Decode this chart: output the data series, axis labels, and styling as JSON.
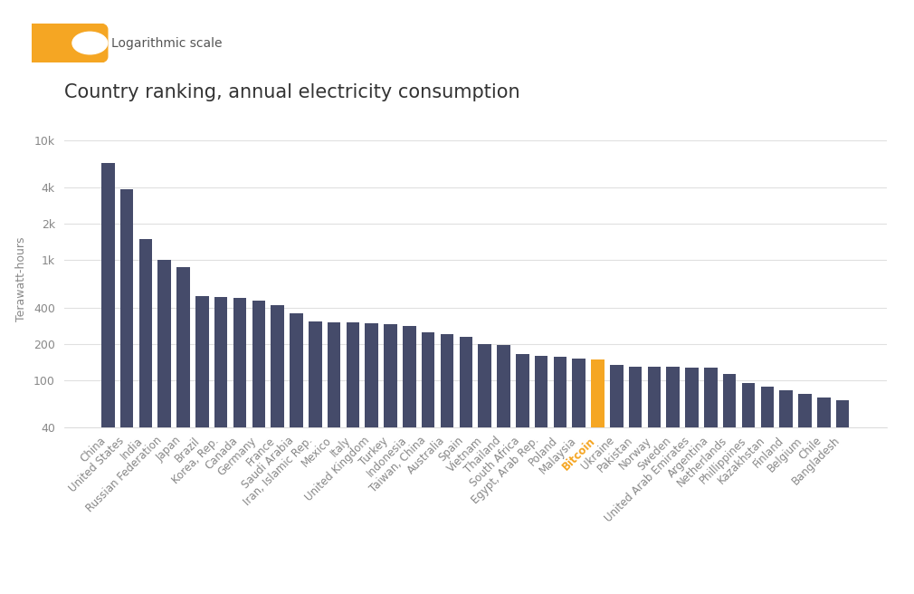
{
  "title": "Country ranking, annual electricity consumption",
  "ylabel": "Terawatt-hours",
  "categories": [
    "China",
    "United States",
    "India",
    "Russian Federation",
    "Japan",
    "Brazil",
    "Korea, Rep.",
    "Canada",
    "Germany",
    "France",
    "Saudi Arabia",
    "Iran, Islamic Rep.",
    "Mexico",
    "Italy",
    "United Kingdom",
    "Turkey",
    "Indonesia",
    "Taiwan, China",
    "Australia",
    "Spain",
    "Vietnam",
    "Thailand",
    "South Africa",
    "Egypt, Arab Rep.",
    "Poland",
    "Malaysia",
    "Bitcoin",
    "Ukraine",
    "Pakistan",
    "Norway",
    "Sweden",
    "United Arab Emirates",
    "Argentina",
    "Netherlands",
    "Phillippines",
    "Kazakhstan",
    "Finland",
    "Belgium",
    "Chile",
    "Bangladesh"
  ],
  "values": [
    6500,
    3900,
    1500,
    1000,
    870,
    500,
    490,
    480,
    455,
    420,
    360,
    310,
    305,
    300,
    295,
    290,
    280,
    250,
    240,
    230,
    200,
    195,
    165,
    160,
    155,
    150,
    148,
    133,
    130,
    128,
    128,
    127,
    127,
    113,
    95,
    88,
    82,
    77,
    72,
    68
  ],
  "bar_color": "#454b6a",
  "bitcoin_color": "#f5a623",
  "bitcoin_label_color": "#f5a623",
  "background_color": "#ffffff",
  "ylim_min": 40,
  "ylim_max": 12000,
  "yticks": [
    40,
    100,
    200,
    400,
    1000,
    2000,
    4000,
    10000
  ],
  "ytick_labels": [
    "40",
    "100",
    "200",
    "400",
    "1k",
    "2k",
    "4k",
    "10k"
  ],
  "title_fontsize": 15,
  "label_fontsize": 8.5,
  "tick_fontsize": 9,
  "toggle_text": "Logarithmic scale"
}
